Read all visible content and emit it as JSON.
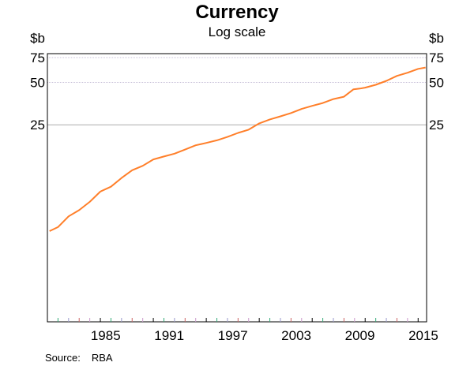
{
  "chart_data": {
    "type": "line",
    "title": "Currency",
    "subtitle": "Log scale",
    "ylabel": "$b",
    "y_scale": "log",
    "ylim": [
      1,
      80
    ],
    "yticks": [
      25,
      50,
      75
    ],
    "xlim": [
      1980,
      2015.8
    ],
    "xtick_labels": [
      "1985",
      "1991",
      "1997",
      "2003",
      "2009",
      "2015"
    ],
    "grid": true,
    "series": [
      {
        "color": "#ff7f2a",
        "x": [
          1980.2,
          1981,
          1982,
          1983,
          1984,
          1985,
          1986,
          1987,
          1988,
          1989,
          1990,
          1991,
          1992,
          1993,
          1994,
          1995,
          1996,
          1997,
          1998,
          1999,
          2000,
          2001,
          2002,
          2003,
          2004,
          2005,
          2006,
          2007,
          2008,
          2008.9,
          2009.5,
          2010,
          2011,
          2012,
          2013,
          2014,
          2015,
          2015.7
        ],
        "y": [
          4.4,
          4.7,
          5.6,
          6.2,
          7.1,
          8.4,
          9.1,
          10.5,
          11.9,
          12.8,
          14.2,
          14.9,
          15.6,
          16.7,
          17.9,
          18.6,
          19.4,
          20.5,
          21.9,
          23.1,
          25.6,
          27.3,
          28.7,
          30.3,
          32.4,
          34.1,
          35.7,
          38.1,
          39.6,
          44.7,
          45.2,
          45.9,
          48.1,
          51.3,
          55.6,
          58.6,
          62.4,
          63.8
        ]
      }
    ]
  },
  "source": {
    "label": "Source:",
    "value": "RBA"
  }
}
